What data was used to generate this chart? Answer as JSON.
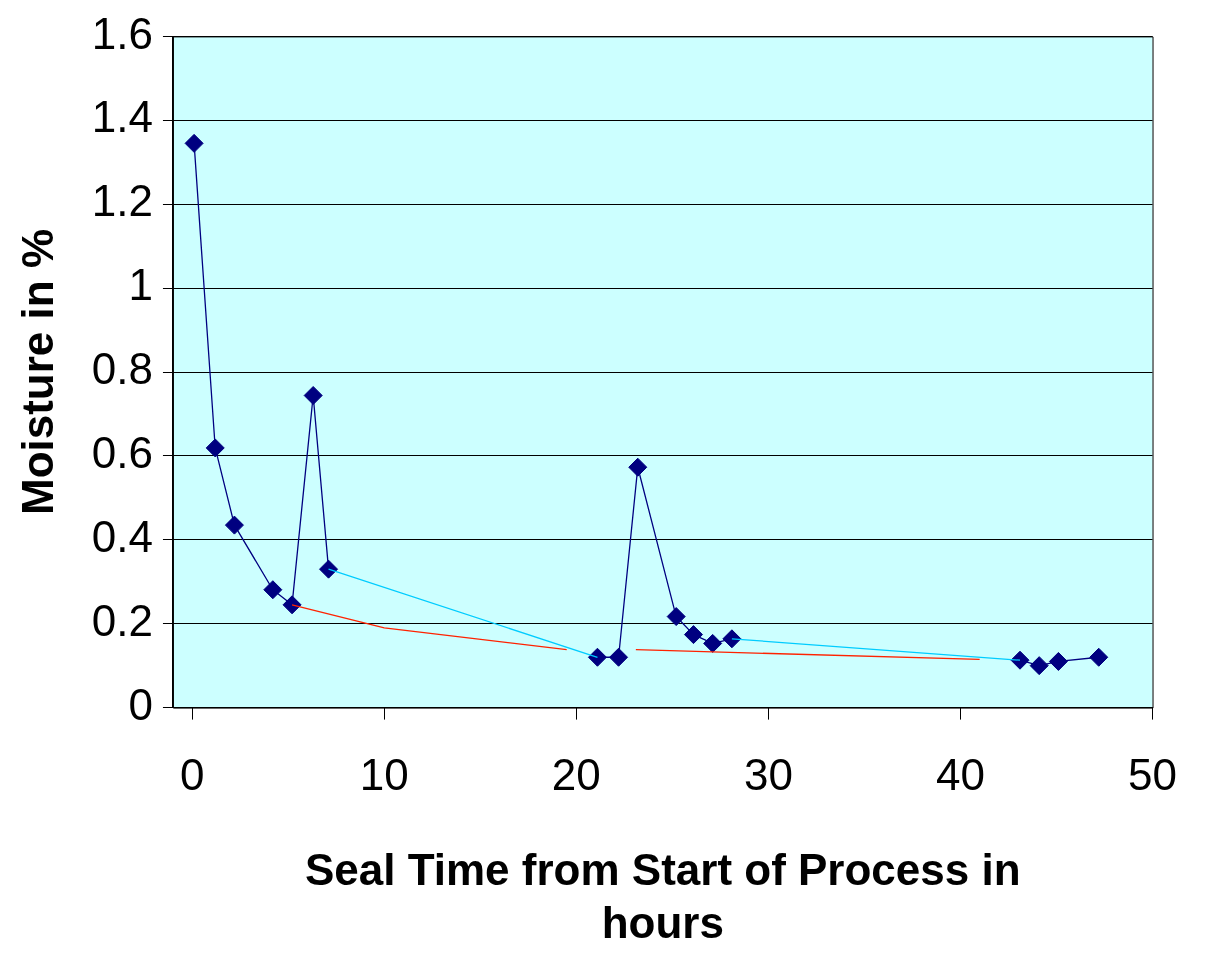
{
  "chart_data": {
    "type": "scatter",
    "xlabel": "Seal Time from Start of Process in hours",
    "ylabel": "Moisture in %",
    "xlim": [
      -1,
      50
    ],
    "xticks": [
      0,
      10,
      20,
      30,
      40,
      50
    ],
    "ylim": [
      0,
      1.6
    ],
    "yticks": [
      0,
      0.2,
      0.4,
      0.6,
      0.8,
      1,
      1.2,
      1.4,
      1.6
    ],
    "grid": "y",
    "legend": false,
    "series": [
      {
        "type": "line",
        "color": "#00ccff",
        "marker": "none",
        "line_style": "solid",
        "x": [
          7.1,
          21.1,
          null,
          28.1,
          43.1
        ],
        "values": [
          0.33,
          0.12,
          null,
          0.164,
          0.113
        ]
      },
      {
        "type": "line",
        "color": "#ff2200",
        "marker": "none",
        "line_style": "solid",
        "x": [
          5.2,
          10,
          19.5,
          null,
          23.1,
          41
        ],
        "values": [
          0.245,
          0.19,
          0.138,
          null,
          0.138,
          0.115
        ]
      },
      {
        "type": "line",
        "color": "#000080",
        "marker": "diamond",
        "line_style": "solid",
        "x": [
          0.1,
          1.2,
          2.2,
          4.2,
          5.2,
          6.3,
          7.1,
          null,
          21.1,
          22.2,
          23.2,
          25.2,
          26.1,
          27.1,
          28.1,
          null,
          43.1,
          44.1,
          45.1,
          47.2
        ],
        "values": [
          1.345,
          0.619,
          0.435,
          0.281,
          0.245,
          0.744,
          0.33,
          null,
          0.12,
          0.12,
          0.573,
          0.217,
          0.174,
          0.153,
          0.164,
          null,
          0.113,
          0.1,
          0.11,
          0.12
        ]
      }
    ]
  }
}
